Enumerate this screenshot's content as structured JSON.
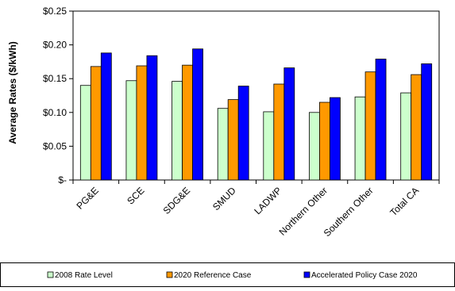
{
  "chart_data": {
    "type": "bar",
    "ylabel": "Average Rates ($/kWh)",
    "xlabel": "",
    "ylim": [
      0,
      0.25
    ],
    "yticks": [
      0,
      0.05,
      0.1,
      0.15,
      0.2,
      0.25
    ],
    "ytick_labels": [
      "$-",
      "$0.05",
      "$0.10",
      "$0.15",
      "$0.20",
      "$0.25"
    ],
    "grid": false,
    "legend_position": "bottom",
    "categories": [
      "PG&E",
      "SCE",
      "SDG&E",
      "SMUD",
      "LADWP",
      "Northern Other",
      "Southern Other",
      "Total CA"
    ],
    "series": [
      {
        "name": "2008 Rate Level",
        "color": "#ccffcc",
        "values": [
          0.14,
          0.147,
          0.146,
          0.106,
          0.101,
          0.1,
          0.123,
          0.129
        ]
      },
      {
        "name": "2020 Reference Case",
        "color": "#ff9900",
        "values": [
          0.168,
          0.169,
          0.17,
          0.119,
          0.142,
          0.115,
          0.16,
          0.156
        ]
      },
      {
        "name": "Accelerated Policy Case 2020",
        "color": "#0000ff",
        "values": [
          0.188,
          0.184,
          0.194,
          0.139,
          0.166,
          0.122,
          0.179,
          0.172
        ]
      }
    ]
  }
}
